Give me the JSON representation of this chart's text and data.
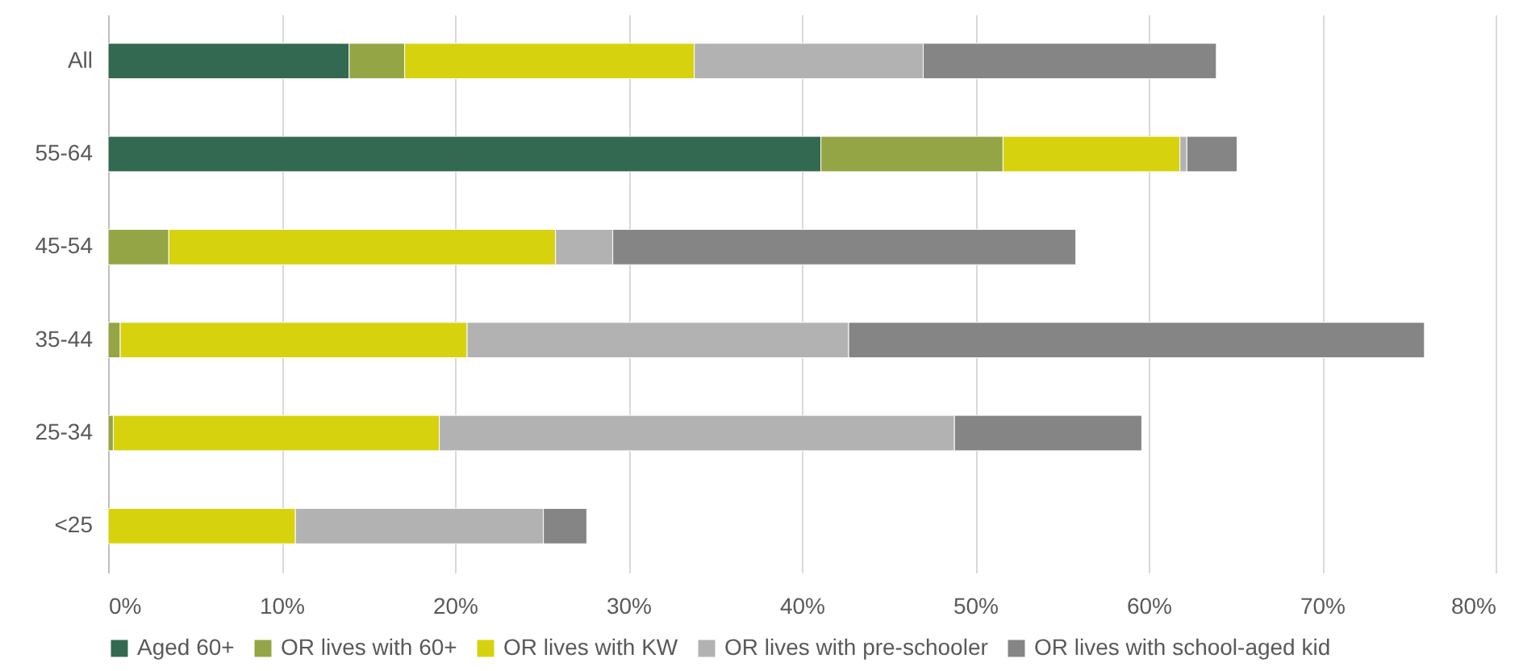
{
  "chart_data": {
    "type": "bar",
    "orientation": "horizontal",
    "stacked": true,
    "categories": [
      "All",
      "55-64",
      "45-54",
      "35-44",
      "25-34",
      "<25"
    ],
    "series": [
      {
        "name": "Aged 60+",
        "color": "#336950",
        "values": [
          13.9,
          41.1,
          0,
          0,
          0,
          0
        ]
      },
      {
        "name": "OR lives with 60+",
        "color": "#94a545",
        "values": [
          3.2,
          10.5,
          3.5,
          0.7,
          0.3,
          0
        ]
      },
      {
        "name": "OR lives with KW",
        "color": "#d6d20e",
        "values": [
          16.7,
          10.2,
          22.3,
          20.0,
          18.8,
          10.8
        ]
      },
      {
        "name": "OR lives with pre-schooler",
        "color": "#b2b2b2",
        "values": [
          13.2,
          0.4,
          3.3,
          22.0,
          29.7,
          14.3
        ]
      },
      {
        "name": "OR lives with school-aged kid",
        "color": "#858585",
        "values": [
          16.9,
          2.9,
          26.7,
          33.2,
          10.8,
          2.5
        ]
      }
    ],
    "xlim": [
      0,
      80
    ],
    "xticks": [
      {
        "value": 0,
        "label": "0%"
      },
      {
        "value": 10,
        "label": "10%"
      },
      {
        "value": 20,
        "label": "20%"
      },
      {
        "value": 30,
        "label": "30%"
      },
      {
        "value": 40,
        "label": "40%"
      },
      {
        "value": 50,
        "label": "50%"
      },
      {
        "value": 60,
        "label": "60%"
      },
      {
        "value": 70,
        "label": "70%"
      },
      {
        "value": 80,
        "label": "80%"
      }
    ],
    "grid": "x",
    "legend": "bottom"
  }
}
